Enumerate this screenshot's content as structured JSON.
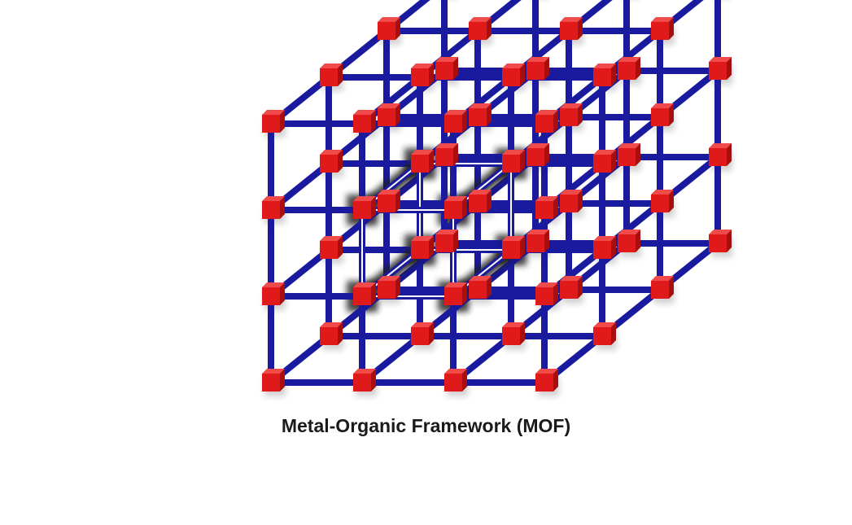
{
  "caption": "Metal-Organic Framework (MOF)",
  "colors": {
    "linker": "#1a1a9e",
    "node": "#e01a1a",
    "node_top": "#f04a4a",
    "node_side": "#a80e0e",
    "highlight_glow": "#1a1a1a",
    "highlight_core": "#ffffff"
  },
  "lattice": {
    "nodes_per_edge": 4,
    "highlighted_unit_cell": "center pore"
  }
}
